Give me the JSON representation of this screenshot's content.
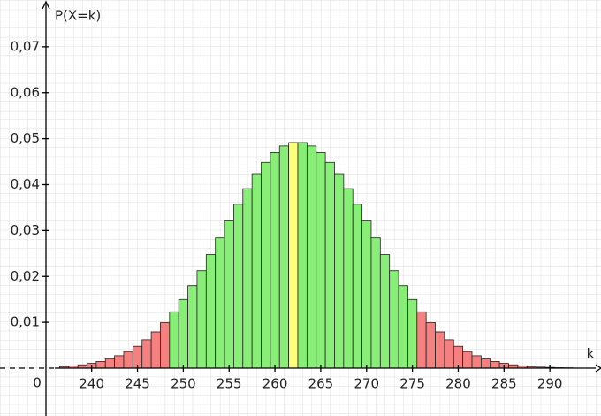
{
  "chart_data": {
    "type": "bar",
    "y_label": "P(X=k)",
    "x_label": "k",
    "origin_label": "0",
    "x": [
      237,
      238,
      239,
      240,
      241,
      242,
      243,
      244,
      245,
      246,
      247,
      248,
      249,
      250,
      251,
      252,
      253,
      254,
      255,
      256,
      257,
      258,
      259,
      260,
      261,
      262,
      263,
      264,
      265,
      266,
      267,
      268,
      269,
      270,
      271,
      272,
      273,
      274,
      275,
      276,
      277,
      278,
      279,
      280,
      281,
      282,
      283,
      284,
      285,
      286,
      287,
      288,
      289,
      290,
      291,
      292
    ],
    "values": [
      0.00035,
      0.00051,
      0.00073,
      0.00104,
      0.00146,
      0.002,
      0.00272,
      0.00363,
      0.00478,
      0.00619,
      0.0079,
      0.00992,
      0.01228,
      0.01498,
      0.01798,
      0.02126,
      0.02476,
      0.0284,
      0.03208,
      0.0357,
      0.03911,
      0.04221,
      0.04486,
      0.04696,
      0.04841,
      0.04916,
      0.04916,
      0.04841,
      0.04696,
      0.04486,
      0.04221,
      0.03911,
      0.0357,
      0.03208,
      0.0284,
      0.02476,
      0.02126,
      0.01798,
      0.01498,
      0.01228,
      0.00992,
      0.0079,
      0.00619,
      0.00478,
      0.00363,
      0.00272,
      0.002,
      0.00146,
      0.00104,
      0.00073,
      0.00051,
      0.00035,
      0.00023,
      0.00016,
      0.0001,
      7e-05
    ],
    "colors": [
      "#f58080",
      "#f58080",
      "#f58080",
      "#f58080",
      "#f58080",
      "#f58080",
      "#f58080",
      "#f58080",
      "#f58080",
      "#f58080",
      "#f58080",
      "#f58080",
      "#88ee77",
      "#88ee77",
      "#88ee77",
      "#88ee77",
      "#88ee77",
      "#88ee77",
      "#88ee77",
      "#88ee77",
      "#88ee77",
      "#88ee77",
      "#88ee77",
      "#88ee77",
      "#88ee77",
      "#ffff77",
      "#88ee77",
      "#88ee77",
      "#88ee77",
      "#88ee77",
      "#88ee77",
      "#88ee77",
      "#88ee77",
      "#88ee77",
      "#88ee77",
      "#88ee77",
      "#88ee77",
      "#88ee77",
      "#88ee77",
      "#f58080",
      "#f58080",
      "#f58080",
      "#f58080",
      "#f58080",
      "#f58080",
      "#f58080",
      "#f58080",
      "#f58080",
      "#f58080",
      "#f58080",
      "#f58080",
      "#f58080",
      "#f58080",
      "#f58080",
      "#f58080",
      "#f58080"
    ],
    "xlim": [
      230,
      295
    ],
    "xticks": [
      240,
      245,
      250,
      255,
      260,
      265,
      270,
      275,
      280,
      285,
      290
    ],
    "ylim": [
      0,
      0.08
    ],
    "yticks": [
      {
        "value": 0.01,
        "label": "0,01"
      },
      {
        "value": 0.02,
        "label": "0,02"
      },
      {
        "value": 0.03,
        "label": "0,03"
      },
      {
        "value": 0.04,
        "label": "0,04"
      },
      {
        "value": 0.05,
        "label": "0,05"
      },
      {
        "value": 0.06,
        "label": "0,06"
      },
      {
        "value": 0.07,
        "label": "0,07"
      }
    ],
    "grid": true
  }
}
